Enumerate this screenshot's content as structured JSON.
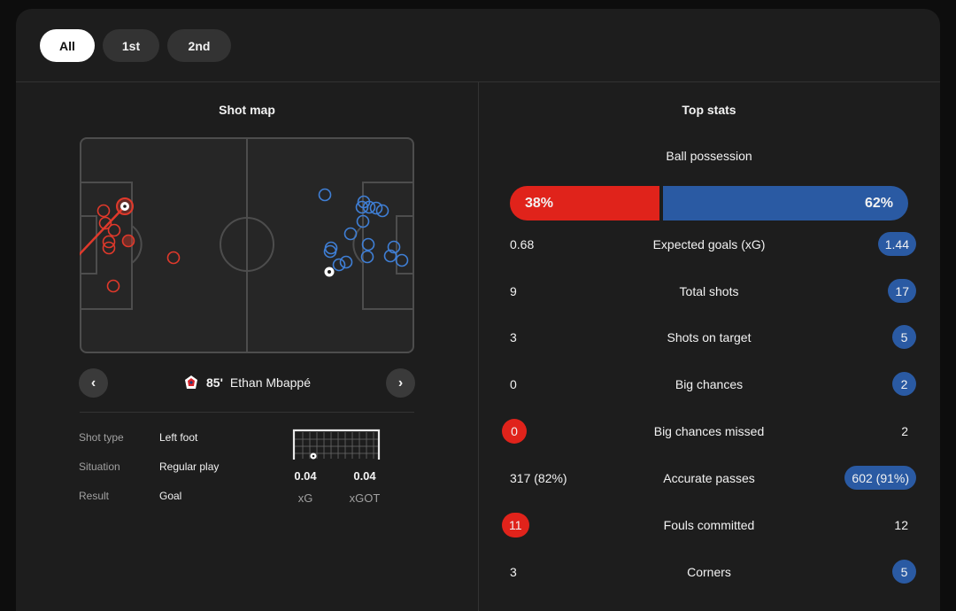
{
  "tabs": [
    {
      "label": "All",
      "active": true
    },
    {
      "label": "1st",
      "active": false
    },
    {
      "label": "2nd",
      "active": false
    }
  ],
  "shot_map": {
    "title": "Shot map",
    "selected_shot": {
      "minute": "85'",
      "player": "Ethan Mbappé",
      "club_icon": "lille-crest-icon",
      "details": [
        {
          "label": "Shot type",
          "value": "Left foot"
        },
        {
          "label": "Situation",
          "value": "Regular play"
        },
        {
          "label": "Result",
          "value": "Goal"
        }
      ],
      "xg": "0.04",
      "xg_label": "xG",
      "xgot": "0.04",
      "xgot_label": "xGOT"
    }
  },
  "top_stats": {
    "title": "Top stats",
    "possession": {
      "label": "Ball possession",
      "home": "38%",
      "away": "62%",
      "home_fraction": 0.38
    },
    "rows": [
      {
        "name": "Expected goals (xG)",
        "home": "0.68",
        "away": "1.44",
        "highlight": "away"
      },
      {
        "name": "Total shots",
        "home": "9",
        "away": "17",
        "highlight": "away"
      },
      {
        "name": "Shots on target",
        "home": "3",
        "away": "5",
        "highlight": "away"
      },
      {
        "name": "Big chances",
        "home": "0",
        "away": "2",
        "highlight": "away"
      },
      {
        "name": "Big chances missed",
        "home": "0",
        "away": "2",
        "highlight": "home"
      },
      {
        "name": "Accurate passes",
        "home": "317 (82%)",
        "away": "602 (91%)",
        "highlight": "away"
      },
      {
        "name": "Fouls committed",
        "home": "11",
        "away": "12",
        "highlight": "home"
      },
      {
        "name": "Corners",
        "home": "3",
        "away": "5",
        "highlight": "away"
      }
    ]
  },
  "colors": {
    "home": "#e0231b",
    "away": "#2a5aa3",
    "home_shot": "#e0392b",
    "away_shot": "#3f7fd6"
  }
}
